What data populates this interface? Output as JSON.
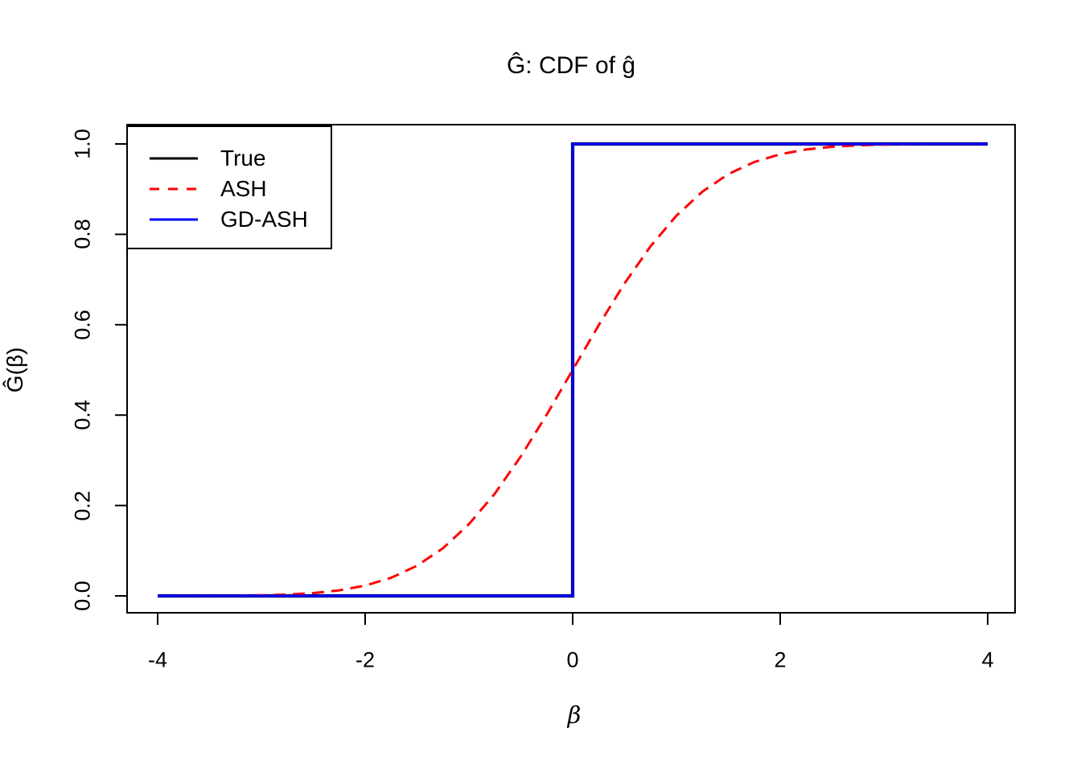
{
  "page": {
    "background": "#ffffff"
  },
  "chart_data": {
    "type": "line",
    "title": "Ĝ: CDF of ĝ",
    "xlabel": "β",
    "ylabel": "Ĝ(β)",
    "xlim": [
      -4.32,
      4.32
    ],
    "ylim": [
      -0.042,
      1.042
    ],
    "x_ticks": [
      -4,
      -2,
      0,
      2,
      4
    ],
    "x_tick_labels": [
      "-4",
      "-2",
      "0",
      "2",
      "4"
    ],
    "y_ticks": [
      0,
      0.2,
      0.4,
      0.6,
      0.8,
      1.0
    ],
    "y_tick_labels": [
      "0.0",
      "0.2",
      "0.4",
      "0.6",
      "0.8",
      "1.0"
    ],
    "grid": false,
    "legend_position": "topleft",
    "axis_color": "#000000",
    "series": [
      {
        "name": "True",
        "color": "#000000",
        "line_style": "solid",
        "line_width": 4.2,
        "shape": "step function: jump from 0 to 1 at beta = 0",
        "x": [
          -4,
          0,
          0,
          4
        ],
        "y": [
          0,
          0,
          1,
          1
        ]
      },
      {
        "name": "ASH",
        "color": "#FF0000",
        "line_style": "dashed",
        "line_width": 3,
        "shape": "smooth sigmoid, approx. standard normal CDF Phi(beta)",
        "x": [
          -4,
          -3.75,
          -3.5,
          -3.25,
          -3,
          -2.75,
          -2.5,
          -2.25,
          -2,
          -1.75,
          -1.5,
          -1.25,
          -1,
          -0.75,
          -0.5,
          -0.25,
          0,
          0.25,
          0.5,
          0.75,
          1,
          1.25,
          1.5,
          1.75,
          2,
          2.25,
          2.5,
          2.75,
          3,
          3.25,
          3.5,
          3.75,
          4
        ],
        "y": [
          0.0,
          0.0001,
          0.0002,
          0.0006,
          0.0013,
          0.003,
          0.0062,
          0.0122,
          0.0228,
          0.0401,
          0.0668,
          0.1056,
          0.1587,
          0.2266,
          0.3085,
          0.4013,
          0.5,
          0.5987,
          0.6915,
          0.7734,
          0.8413,
          0.8944,
          0.9332,
          0.9599,
          0.9772,
          0.9878,
          0.9938,
          0.997,
          0.9987,
          0.9994,
          0.9998,
          0.9999,
          1.0
        ]
      },
      {
        "name": "GD-ASH",
        "color": "#0000FF",
        "line_style": "solid",
        "line_width": 3.2,
        "shape": "step function: jump from 0 to 1 at beta = 0",
        "x": [
          -4,
          0,
          0,
          4
        ],
        "y": [
          0,
          0,
          1,
          1
        ]
      }
    ]
  }
}
